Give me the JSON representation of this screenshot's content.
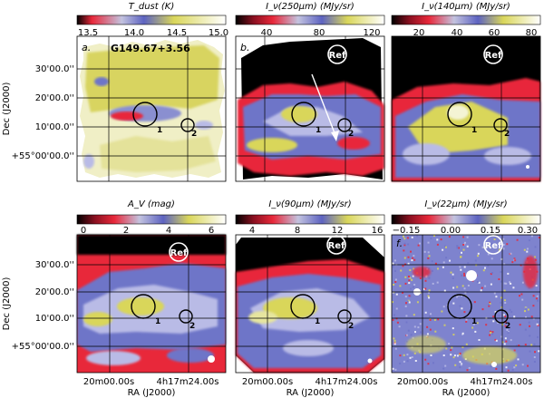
{
  "region_label": "G149.67+3.56",
  "axes": {
    "ylabel": "Dec (J2000)",
    "xlabel": "RA (J2000)",
    "yticks": [
      "30'00.0''",
      "20'00.0''",
      "10'00.0''",
      "+55°00'00.0''"
    ],
    "xticks": [
      "20m00.00s",
      "4h17m24.00s"
    ]
  },
  "marker_labels": {
    "ref": "Ref",
    "source1": "1",
    "source2": "2"
  },
  "panels": [
    {
      "letter": "a.",
      "cb_title": "T_dust (K)",
      "ticks": [
        "13.5",
        "14.0",
        "14.5",
        "15.0"
      ],
      "cmap": "dust"
    },
    {
      "letter": "b.",
      "cb_title": "I_ν(250μm) (MJy/sr)",
      "ticks": [
        "40",
        "80",
        "120"
      ],
      "cmap": "std"
    },
    {
      "letter": "c.",
      "cb_title": "I_ν(140μm) (MJy/sr)",
      "ticks": [
        "20",
        "40",
        "60",
        "80"
      ],
      "cmap": "std"
    },
    {
      "letter": "d.",
      "cb_title": "A_V (mag)",
      "ticks": [
        "0",
        "2",
        "4",
        "6"
      ],
      "cmap": "std"
    },
    {
      "letter": "e.",
      "cb_title": "I_ν(90μm) (MJy/sr)",
      "ticks": [
        "4",
        "8",
        "12",
        "16"
      ],
      "cmap": "std"
    },
    {
      "letter": "f.",
      "cb_title": "I_ν(22μm) (MJy/sr)",
      "ticks": [
        "−0.15",
        "0.00",
        "0.15",
        "0.30"
      ],
      "cmap": "std"
    }
  ],
  "colors": {
    "black": "#000000",
    "red": "#e8283a",
    "blue": "#6e74c8",
    "lavender": "#b9bbe6",
    "yellow": "#d9d65a",
    "pale": "#f4f4d4",
    "white": "#ffffff"
  }
}
